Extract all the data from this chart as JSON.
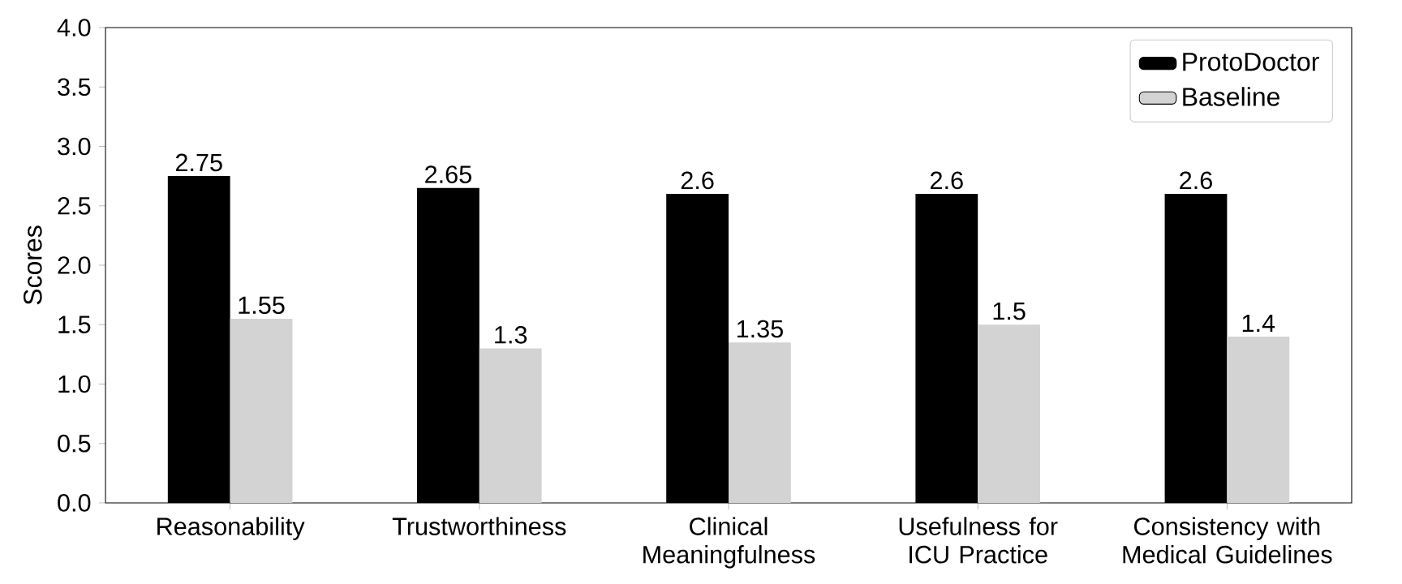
{
  "chart_data": {
    "type": "bar",
    "ylabel": "Scores",
    "categories": [
      "Reasonability",
      "Trustworthiness",
      "Clinical Meaningfulness",
      "Usefulness for ICU Practice",
      "Consistency with Medical Guidelines"
    ],
    "series": [
      {
        "name": "ProtoDoctor",
        "color": "#000000",
        "values": [
          2.75,
          2.65,
          2.6,
          2.6,
          2.6
        ]
      },
      {
        "name": "Baseline",
        "color": "#d3d3d3",
        "values": [
          1.55,
          1.3,
          1.35,
          1.5,
          1.4
        ]
      }
    ],
    "ylim": [
      0,
      4
    ],
    "yticks": [
      {
        "value": 0,
        "label": "0.0"
      },
      {
        "value": 0.5,
        "label": "0.5"
      },
      {
        "value": 1,
        "label": "1.0"
      },
      {
        "value": 1.5,
        "label": "1.5"
      },
      {
        "value": 2,
        "label": "2.0"
      },
      {
        "value": 2.5,
        "label": "2.5"
      },
      {
        "value": 3,
        "label": "3.0"
      },
      {
        "value": 3.5,
        "label": "3.5"
      },
      {
        "value": 4,
        "label": "4.0"
      }
    ],
    "data_labels": true,
    "legend": "top right",
    "grid": false
  }
}
